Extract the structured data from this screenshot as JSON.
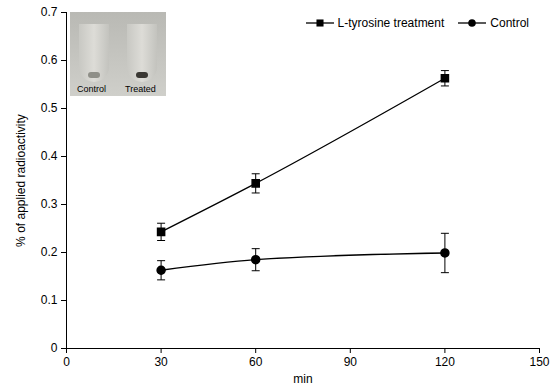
{
  "chart_data": {
    "type": "line",
    "x": [
      30,
      60,
      120
    ],
    "series": [
      {
        "name": "L-tyrosine treatment",
        "color": "#000000",
        "marker": "square",
        "values": [
          0.243,
          0.344,
          0.563
        ],
        "errors": [
          0.018,
          0.02,
          0.016
        ]
      },
      {
        "name": "Control",
        "color": "#000000",
        "marker": "circle",
        "values": [
          0.163,
          0.185,
          0.199
        ],
        "errors": [
          0.02,
          0.023,
          0.041
        ]
      }
    ],
    "xlabel": "min",
    "ylabel": "% of applied radioactivity",
    "xlim": [
      0,
      150
    ],
    "ylim": [
      0,
      0.7
    ],
    "xticks": [
      0,
      30,
      60,
      90,
      120,
      150
    ],
    "yticks": [
      0,
      0.1,
      0.2,
      0.3,
      0.4,
      0.5,
      0.6,
      0.7
    ],
    "grid": false,
    "legend": "top right",
    "annotations": [
      "Control",
      "Treated"
    ]
  }
}
